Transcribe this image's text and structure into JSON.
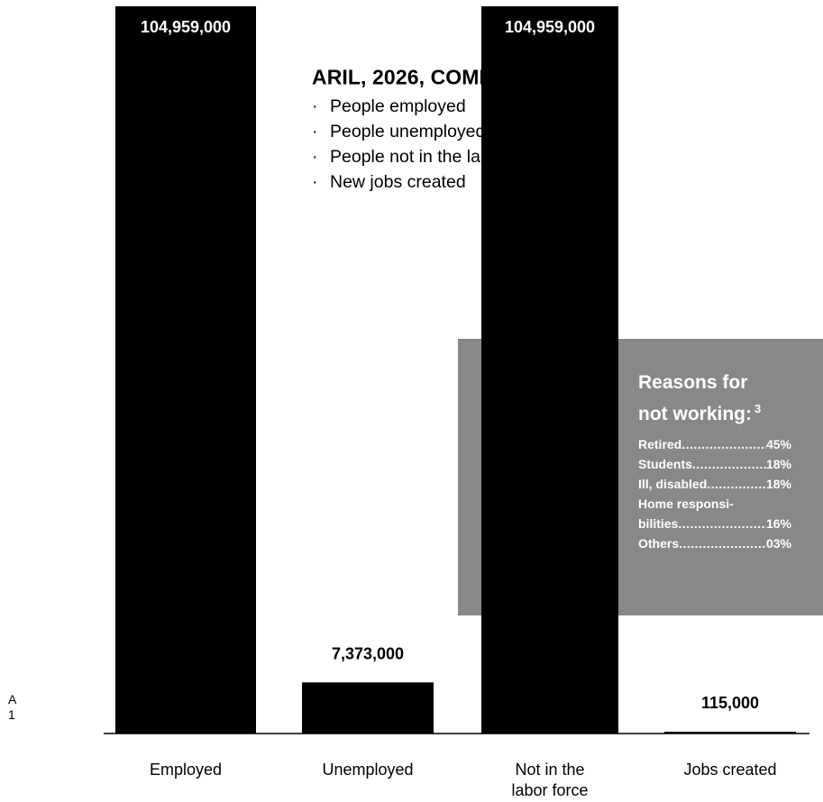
{
  "chart_data": {
    "type": "bar",
    "categories": [
      "Employed",
      "Unemployed",
      "Not in the\nlabor force",
      "Jobs created"
    ],
    "values": [
      104959000,
      7373000,
      104959000,
      115000
    ],
    "value_labels": [
      "104,959,000",
      "7,373,000",
      "104,959,000",
      "115,000"
    ],
    "colors": {
      "bar": "#000000",
      "panel": "#888888",
      "panel_text": "#ffffff"
    }
  },
  "comparisons": {
    "title": "ARIL, 2026, COMPARISONS",
    "footnote": "1",
    "items": [
      "People employed",
      "People unemployed",
      "People not in the labor force",
      "New jobs created"
    ]
  },
  "reasons": {
    "title_line1": "Reasons for",
    "title_line2": "not working:",
    "footnote": "3",
    "rows": [
      {
        "label": "Retired",
        "value": "45%"
      },
      {
        "label": "Students",
        "value": "18%"
      },
      {
        "label": "Ill, disabled",
        "value": "18%"
      },
      {
        "label": "Home responsi-",
        "value": ""
      },
      {
        "label": "bilities",
        "value": "16%"
      },
      {
        "label": "Others",
        "value": "03%"
      }
    ]
  },
  "footnote_mark": {
    "letter": "A",
    "number": "1"
  }
}
